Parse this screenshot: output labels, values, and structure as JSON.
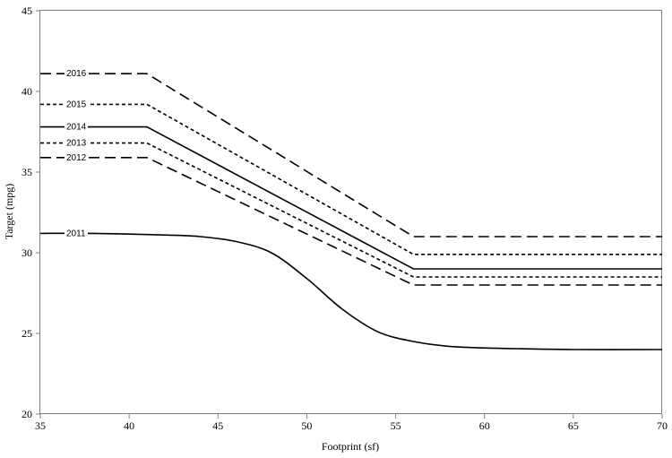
{
  "chart_data": {
    "type": "line",
    "title": "",
    "xlabel": "Footprint (sf)",
    "ylabel": "Target (mpg)",
    "xlim": [
      35,
      70
    ],
    "ylim": [
      20,
      45
    ],
    "x_ticks": [
      "35",
      "40",
      "45",
      "50",
      "55",
      "60",
      "65",
      "70"
    ],
    "y_ticks": [
      "20",
      "25",
      "30",
      "35",
      "40",
      "45"
    ],
    "grid": false,
    "legend": "inline labels at left",
    "series": [
      {
        "name": "2016",
        "dash": "long-dash",
        "x": [
          35,
          41,
          56,
          70
        ],
        "y": [
          41.1,
          41.1,
          31.0,
          31.0
        ]
      },
      {
        "name": "2015",
        "dash": "short-dash",
        "x": [
          35,
          41,
          56,
          70
        ],
        "y": [
          39.2,
          39.2,
          29.9,
          29.9
        ]
      },
      {
        "name": "2014",
        "dash": "solid",
        "x": [
          35,
          41,
          56,
          70
        ],
        "y": [
          37.8,
          37.8,
          29.0,
          29.0
        ]
      },
      {
        "name": "2013",
        "dash": "short-dash",
        "x": [
          35,
          41,
          56,
          70
        ],
        "y": [
          36.8,
          36.8,
          28.5,
          28.5
        ]
      },
      {
        "name": "2012",
        "dash": "long-dash",
        "x": [
          35,
          41,
          56,
          70
        ],
        "y": [
          35.9,
          35.9,
          28.0,
          28.0
        ]
      },
      {
        "name": "2011",
        "dash": "solid",
        "smooth": true,
        "x": [
          35,
          38,
          42,
          44,
          46,
          48,
          50,
          52,
          54,
          56,
          58,
          60,
          62,
          65,
          70
        ],
        "y": [
          31.2,
          31.2,
          31.1,
          31.0,
          30.7,
          30.0,
          28.4,
          26.5,
          25.1,
          24.5,
          24.2,
          24.1,
          24.05,
          24.0,
          24.0
        ]
      }
    ]
  }
}
